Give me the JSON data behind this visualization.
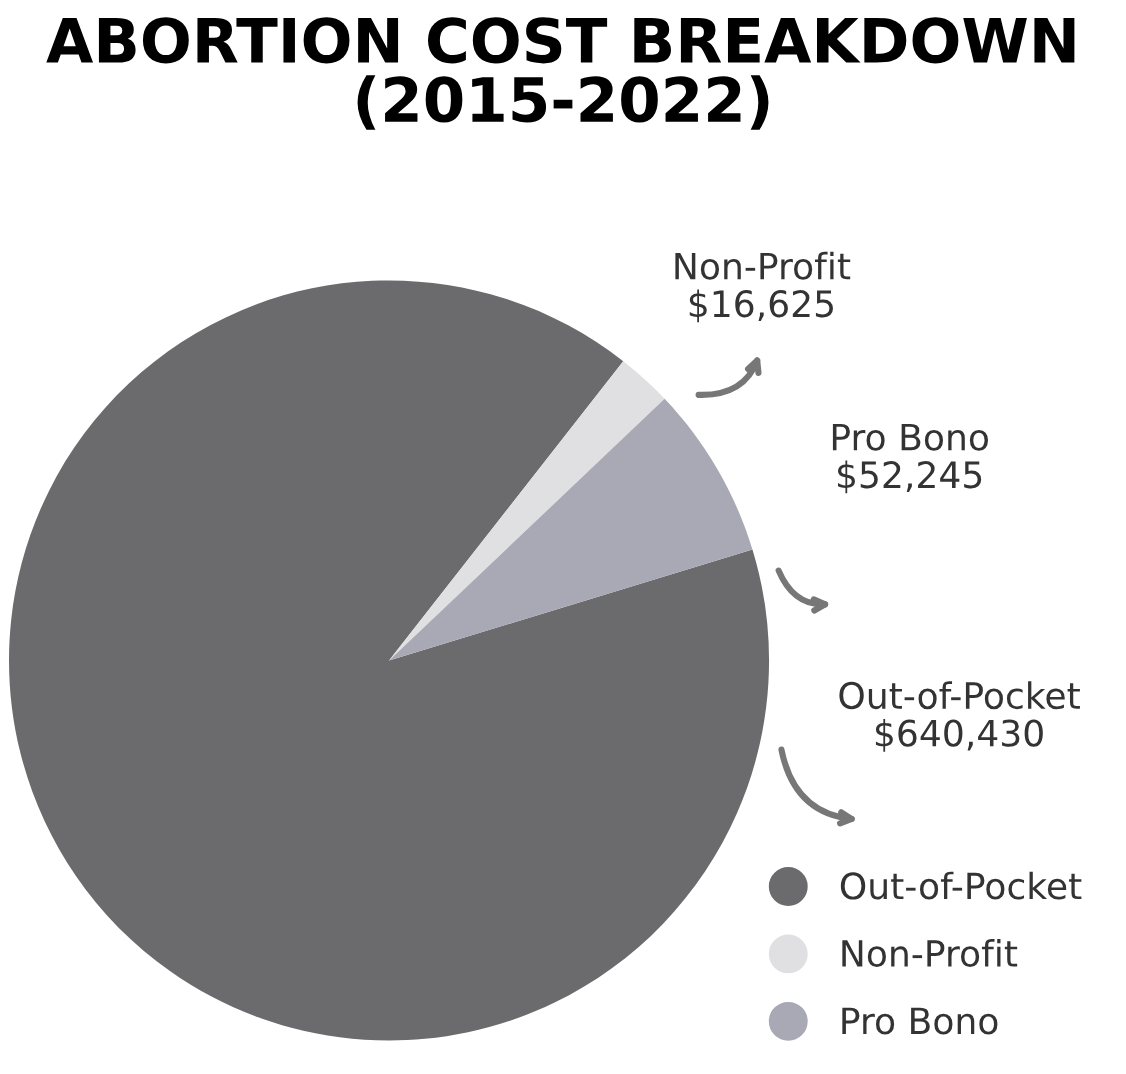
{
  "chart_data": {
    "type": "pie",
    "title": "ABORTION COST BREAKDOWN\n(2015-2022)",
    "categories": [
      "Out-of-Pocket",
      "Non-Profit",
      "Pro Bono"
    ],
    "values": [
      640430,
      16625,
      52245
    ],
    "value_labels": [
      "$640,430",
      "$16,625",
      "$52,245"
    ],
    "colors": [
      "#6b6b6d",
      "#e0e0e2",
      "#a9a9b6"
    ],
    "legend": "bottom right"
  }
}
